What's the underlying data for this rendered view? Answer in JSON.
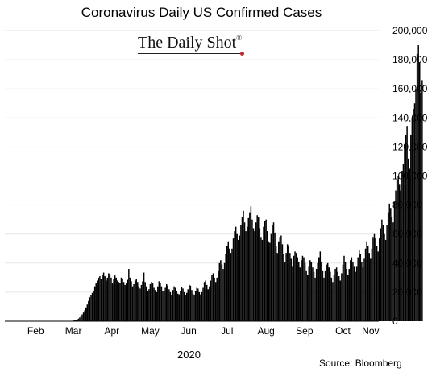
{
  "chart_data": {
    "type": "bar",
    "title": "Coronavirus Daily US Confirmed Cases",
    "watermark": "The Daily Shot",
    "watermark_mark": "®",
    "source": "Source: Bloomberg",
    "xlabel": "2020",
    "ylabel": "",
    "ylim": [
      0,
      200000
    ],
    "yticks": [
      0,
      20000,
      40000,
      60000,
      80000,
      100000,
      120000,
      140000,
      160000,
      180000,
      200000
    ],
    "ytick_labels": [
      "0",
      "20,000",
      "40,000",
      "60,000",
      "80,000",
      "100,000",
      "120,000",
      "140,000",
      "160,000",
      "180,000",
      "200,000"
    ],
    "xtick_labels": [
      "Feb",
      "Mar",
      "Apr",
      "May",
      "Jun",
      "Jul",
      "Aug",
      "Sep",
      "Oct",
      "Nov"
    ],
    "x_start": "2020-01-22",
    "x_end": "2020-11-13",
    "grid": true,
    "bar_color": "#000000",
    "grid_color": "#e6e6e6",
    "series": [
      {
        "values": [
          0,
          0,
          0,
          0,
          0,
          0,
          0,
          0,
          0,
          0,
          0,
          0,
          0,
          0,
          0,
          0,
          0,
          0,
          0,
          0,
          0,
          0,
          0,
          0,
          0,
          0,
          0,
          0,
          0,
          0,
          0,
          0,
          0,
          0,
          0,
          0,
          0,
          0,
          0,
          0,
          0,
          0,
          0,
          0,
          0,
          0,
          10,
          20,
          30,
          40,
          60,
          100,
          200,
          300,
          450,
          600,
          900,
          1200,
          1800,
          2600,
          3500,
          4700,
          6000,
          7500,
          9500,
          11500,
          14000,
          16500,
          18000,
          19500,
          21000,
          24000,
          26000,
          28000,
          30000,
          31000,
          29000,
          32000,
          33500,
          31000,
          28000,
          30000,
          33000,
          32500,
          30000,
          26000,
          29000,
          31500,
          30000,
          28000,
          27000,
          26500,
          30000,
          29500,
          27000,
          25000,
          26000,
          28500,
          36000,
          30000,
          27500,
          24000,
          25500,
          28000,
          29000,
          27000,
          24000,
          22500,
          25000,
          27500,
          33500,
          27000,
          24000,
          21000,
          22000,
          25500,
          27000,
          26000,
          23000,
          21500,
          20000,
          24000,
          27500,
          26500,
          24000,
          21000,
          20500,
          23000,
          25500,
          24500,
          22000,
          20000,
          18000,
          21500,
          24000,
          23000,
          21000,
          19000,
          18500,
          21000,
          23500,
          22500,
          20000,
          18000,
          19500,
          22000,
          25000,
          24500,
          21500,
          19000,
          18000,
          20500,
          23000,
          22500,
          20000,
          18500,
          20000,
          23000,
          27000,
          28000,
          25000,
          22000,
          24000,
          28000,
          32000,
          33000,
          30000,
          27000,
          30000,
          35000,
          40000,
          42000,
          39000,
          36000,
          40000,
          46000,
          52000,
          55000,
          50000,
          47000,
          50000,
          57000,
          62000,
          65000,
          60000,
          56000,
          59000,
          66000,
          72000,
          76000,
          68000,
          62000,
          65000,
          71000,
          75000,
          79000,
          70000,
          64000,
          62000,
          68000,
          73000,
          72000,
          64000,
          58000,
          56000,
          65000,
          69000,
          70000,
          62000,
          55000,
          54000,
          60000,
          66000,
          68000,
          61000,
          52000,
          47000,
          55000,
          58000,
          59000,
          53000,
          46000,
          41000,
          47000,
          53000,
          52000,
          47000,
          43000,
          38000,
          45000,
          48000,
          47000,
          44000,
          41000,
          37000,
          42000,
          45000,
          44000,
          40000,
          35000,
          32000,
          38000,
          42000,
          41000,
          37000,
          34000,
          30000,
          36000,
          40000,
          44000,
          48000,
          41000,
          35000,
          30000,
          35000,
          39000,
          40000,
          37000,
          34000,
          30000,
          27000,
          32000,
          36000,
          37000,
          34000,
          31000,
          28000,
          33000,
          39000,
          45000,
          41000,
          36000,
          32000,
          36000,
          42000,
          44000,
          41000,
          38000,
          34000,
          38000,
          44000,
          49000,
          46000,
          41000,
          37000,
          43000,
          50000,
          55000,
          52000,
          47000,
          43000,
          50000,
          58000,
          60000,
          57000,
          52000,
          48000,
          57000,
          64000,
          70000,
          66000,
          60000,
          56000,
          66000,
          75000,
          81000,
          78000,
          72000,
          68000,
          82000,
          90000,
          97000,
          100000,
          94000,
          90000,
          103000,
          108000,
          122000,
          128000,
          134000,
          112000,
          105000,
          128000,
          140000,
          146000,
          150000,
          160000,
          184000,
          190000,
          178000,
          157000,
          166000
        ]
      }
    ]
  }
}
